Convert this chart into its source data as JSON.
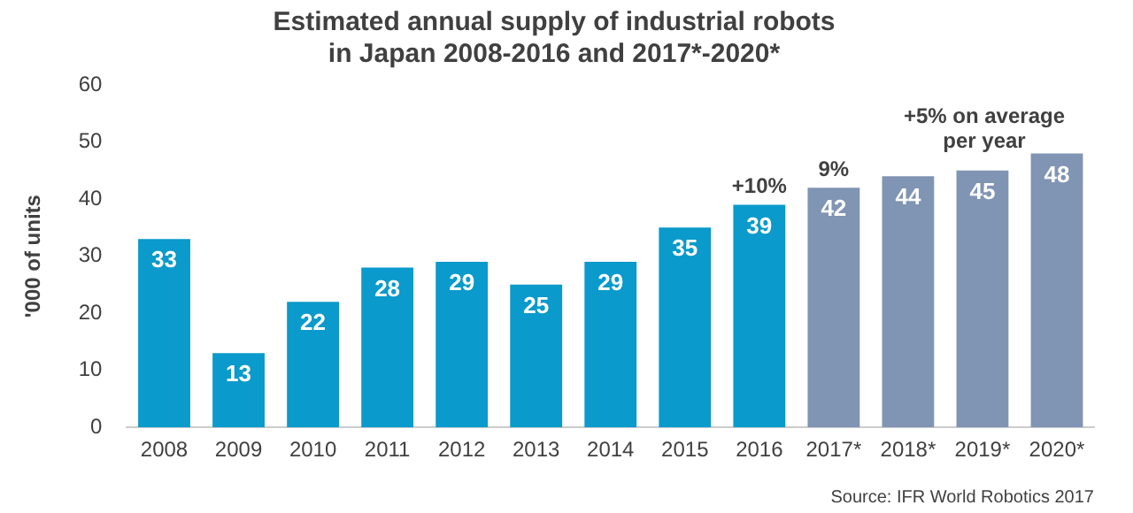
{
  "chart_data": {
    "type": "bar",
    "title": "Estimated annual supply of industrial robots\nin Japan 2008-2016 and 2017*-2020*",
    "ylabel": "'000 of units",
    "categories": [
      "2008",
      "2009",
      "2010",
      "2011",
      "2012",
      "2013",
      "2014",
      "2015",
      "2016",
      "2017*",
      "2018*",
      "2019*",
      "2020*"
    ],
    "values": [
      33,
      13,
      22,
      28,
      29,
      25,
      29,
      35,
      39,
      42,
      44,
      45,
      48
    ],
    "colors": [
      "#0a9acb",
      "#0a9acb",
      "#0a9acb",
      "#0a9acb",
      "#0a9acb",
      "#0a9acb",
      "#0a9acb",
      "#0a9acb",
      "#0a9acb",
      "#8094b3",
      "#8094b3",
      "#8094b3",
      "#8094b3"
    ],
    "ylim": [
      0,
      60
    ],
    "yticks": [
      0,
      10,
      20,
      30,
      40,
      50,
      60
    ],
    "grid": false,
    "legend": false,
    "data_labels": true,
    "annotations": [
      {
        "text": "+10%",
        "x": "2016",
        "y": 39
      },
      {
        "text": "9%",
        "x": "2017*",
        "y": 42
      },
      "+5% on average per year",
      "Source: IFR World Robotics 2017"
    ]
  }
}
